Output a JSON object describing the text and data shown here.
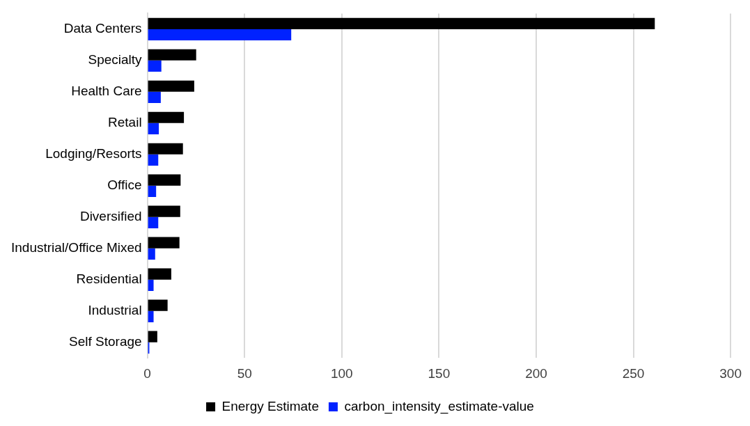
{
  "chart_data": {
    "type": "bar",
    "orientation": "horizontal",
    "categories": [
      "Data Centers",
      "Specialty",
      "Health Care",
      "Retail",
      "Lodging/Resorts",
      "Office",
      "Diversified",
      "Industrial/Office Mixed",
      "Residential",
      "Industrial",
      "Self Storage"
    ],
    "series": [
      {
        "name": "Energy Estimate",
        "color": "#000000",
        "values": [
          261,
          25.1,
          24.1,
          18.8,
          18.3,
          17.1,
          16.9,
          16.5,
          12.3,
          10.4,
          5.1
        ]
      },
      {
        "name": "carbon_intensity_estimate-value",
        "color": "#0022ff",
        "values": [
          74,
          7.2,
          6.9,
          5.9,
          5.6,
          4.5,
          5.6,
          4.0,
          3.2,
          3.2,
          1.0
        ]
      }
    ],
    "xlim": [
      0,
      300
    ],
    "xticks": [
      0,
      50,
      100,
      150,
      200,
      250,
      300
    ],
    "grid": "x",
    "legend": "bottom"
  }
}
